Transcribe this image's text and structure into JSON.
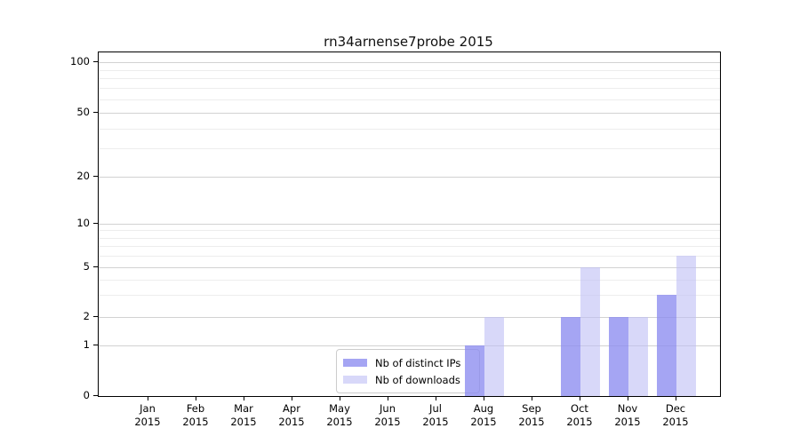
{
  "chart_data": {
    "type": "bar",
    "title": "rn34arnense7probe 2015",
    "categories": [
      "Jan",
      "Feb",
      "Mar",
      "Apr",
      "May",
      "Jun",
      "Jul",
      "Aug",
      "Sep",
      "Oct",
      "Nov",
      "Dec"
    ],
    "year_label": "2015",
    "series": [
      {
        "name": "Nb of distinct IPs",
        "color": "#a7a7f3",
        "fill": "rgba(140,140,240,0.78)",
        "values": [
          0,
          0,
          0,
          0,
          0,
          0,
          0,
          1,
          0,
          2,
          2,
          3
        ]
      },
      {
        "name": "Nb of downloads",
        "color": "#d8d8f8",
        "fill": "rgba(190,190,245,0.60)",
        "values": [
          0,
          0,
          0,
          0,
          0,
          0,
          0,
          2,
          0,
          5,
          2,
          6
        ]
      }
    ],
    "yticks": [
      "0",
      "1",
      "2",
      "5",
      "10",
      "20",
      "50",
      "100"
    ],
    "ytick_values": [
      0,
      1,
      2,
      5,
      10,
      20,
      50,
      100
    ],
    "minor_gridline_values": [
      3,
      4,
      6,
      7,
      8,
      9,
      30,
      40,
      60,
      70,
      80,
      90
    ],
    "yscale": "log-like",
    "ylim": [
      0,
      110
    ],
    "grid": true,
    "legend_position": "bottom-center-inside",
    "axis_color": "#000000",
    "background_color": "#ffffff"
  },
  "legend": {
    "items": [
      {
        "label": "Nb of distinct IPs"
      },
      {
        "label": "Nb of downloads"
      }
    ]
  }
}
